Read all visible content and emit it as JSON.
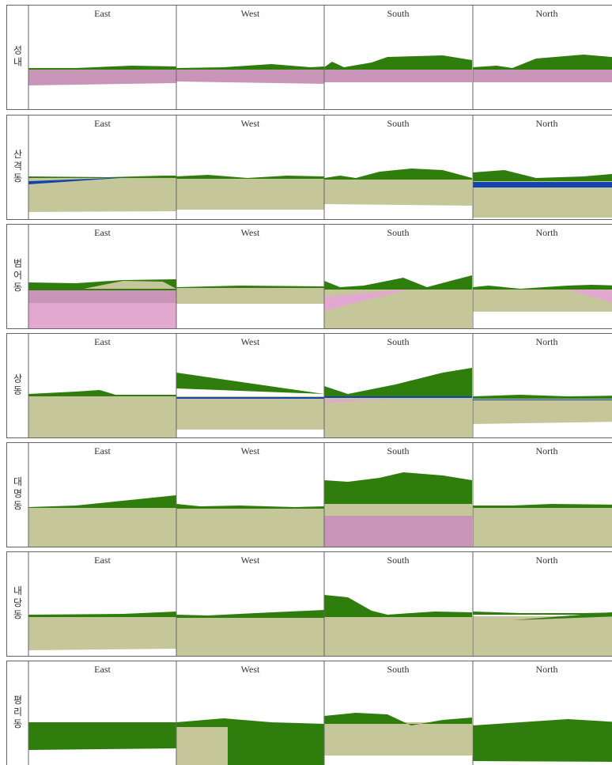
{
  "rows": [
    {
      "label": "성내",
      "views": [
        "East",
        "West",
        "South",
        "North"
      ]
    },
    {
      "label": "산격동",
      "views": [
        "East",
        "West",
        "South",
        "North"
      ]
    },
    {
      "label": "범어동",
      "views": [
        "East",
        "West",
        "South",
        "North"
      ]
    },
    {
      "label": "상동",
      "views": [
        "East",
        "West",
        "South",
        "North"
      ]
    },
    {
      "label": "대명동",
      "views": [
        "East",
        "West",
        "South",
        "North"
      ]
    },
    {
      "label": "내당동",
      "views": [
        "East",
        "West",
        "South",
        "North"
      ]
    },
    {
      "label": "평리동",
      "views": [
        "East",
        "West",
        "South",
        "North"
      ]
    }
  ]
}
